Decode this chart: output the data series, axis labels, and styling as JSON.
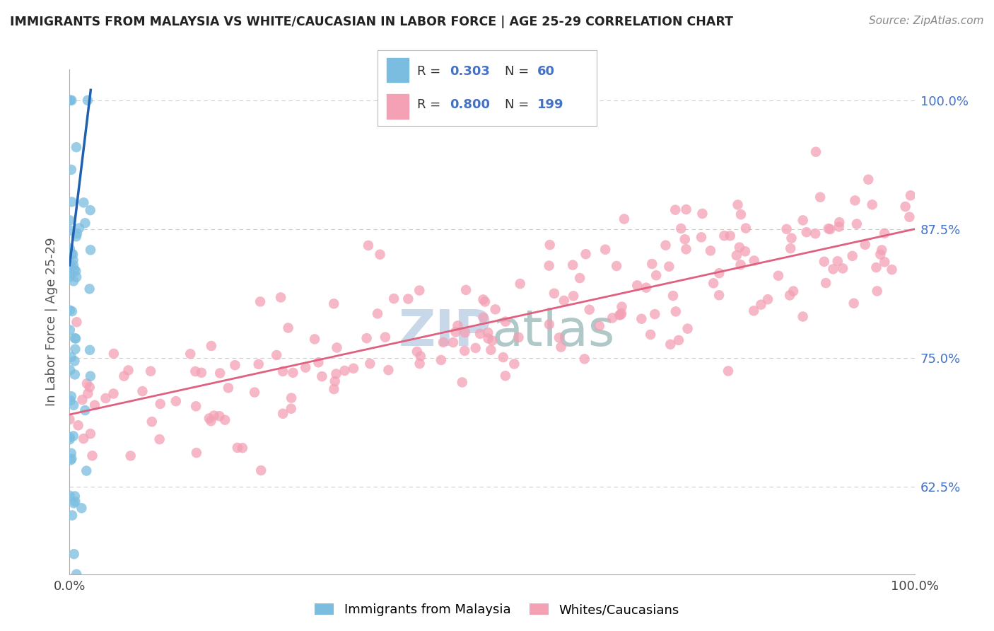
{
  "title": "IMMIGRANTS FROM MALAYSIA VS WHITE/CAUCASIAN IN LABOR FORCE | AGE 25-29 CORRELATION CHART",
  "source": "Source: ZipAtlas.com",
  "ylabel": "In Labor Force | Age 25-29",
  "ytick_labels": [
    "62.5%",
    "75.0%",
    "87.5%",
    "100.0%"
  ],
  "ytick_values": [
    0.625,
    0.75,
    0.875,
    1.0
  ],
  "legend_bottom": [
    "Immigrants from Malaysia",
    "Whites/Caucasians"
  ],
  "R_blue": 0.303,
  "N_blue": 60,
  "R_pink": 0.8,
  "N_pink": 199,
  "blue_color": "#7bbde0",
  "blue_line_color": "#2060b0",
  "pink_color": "#f4a0b5",
  "pink_line_color": "#e06080",
  "legend_R_color": "#4472c4",
  "background_color": "#ffffff",
  "grid_color": "#cccccc",
  "title_color": "#222222",
  "watermark_color": "#c8d8e8",
  "ylim_low": 0.54,
  "ylim_high": 1.03,
  "xlim_low": 0.0,
  "xlim_high": 1.0,
  "pink_line_x0": 0.0,
  "pink_line_y0": 0.695,
  "pink_line_x1": 1.0,
  "pink_line_y1": 0.875,
  "blue_line_x0": 0.0,
  "blue_line_y0": 0.84,
  "blue_line_x1": 0.025,
  "blue_line_y1": 1.01
}
